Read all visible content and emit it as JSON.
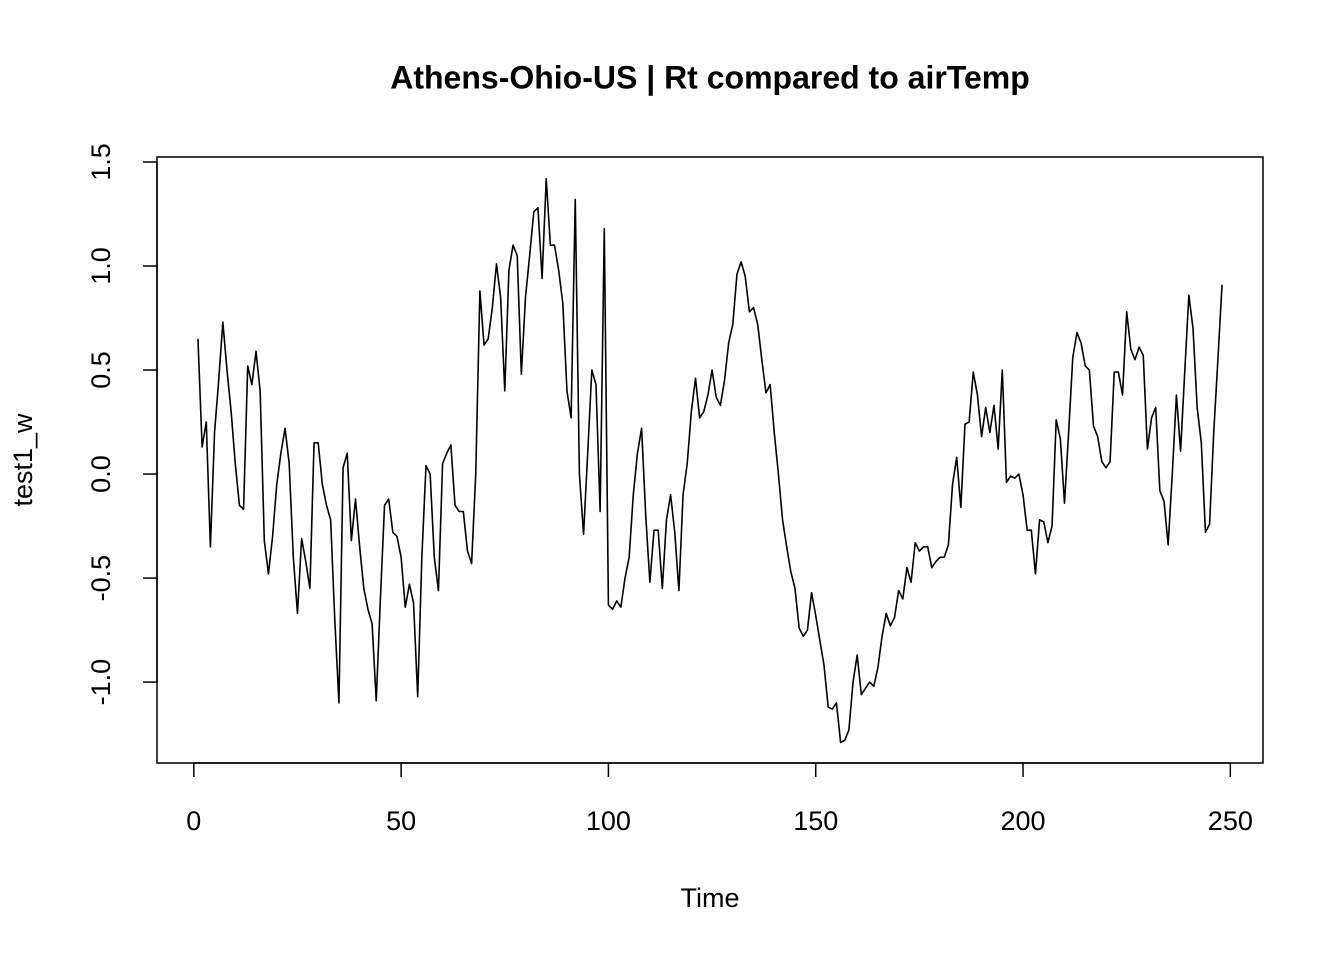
{
  "chart_data": {
    "type": "line",
    "title": "Athens-Ohio-US | Rt compared to airTemp",
    "x_label": "Time",
    "y_label": "test1_w",
    "x": [
      1,
      2,
      3,
      4,
      5,
      6,
      7,
      8,
      9,
      10,
      11,
      12,
      13,
      14,
      15,
      16,
      17,
      18,
      19,
      20,
      21,
      22,
      23,
      24,
      25,
      26,
      27,
      28,
      29,
      30,
      31,
      32,
      33,
      34,
      35,
      36,
      37,
      38,
      39,
      40,
      41,
      42,
      43,
      44,
      45,
      46,
      47,
      48,
      49,
      50,
      51,
      52,
      53,
      54,
      55,
      56,
      57,
      58,
      59,
      60,
      61,
      62,
      63,
      64,
      65,
      66,
      67,
      68,
      69,
      70,
      71,
      72,
      73,
      74,
      75,
      76,
      77,
      78,
      79,
      80,
      81,
      82,
      83,
      84,
      85,
      86,
      87,
      88,
      89,
      90,
      91,
      92,
      93,
      94,
      95,
      96,
      97,
      98,
      99,
      100,
      101,
      102,
      103,
      104,
      105,
      106,
      107,
      108,
      109,
      110,
      111,
      112,
      113,
      114,
      115,
      116,
      117,
      118,
      119,
      120,
      121,
      122,
      123,
      124,
      125,
      126,
      127,
      128,
      129,
      130,
      131,
      132,
      133,
      134,
      135,
      136,
      137,
      138,
      139,
      140,
      141,
      142,
      143,
      144,
      145,
      146,
      147,
      148,
      149,
      150,
      151,
      152,
      153,
      154,
      155,
      156,
      157,
      158,
      159,
      160,
      161,
      162,
      163,
      164,
      165,
      166,
      167,
      168,
      169,
      170,
      171,
      172,
      173,
      174,
      175,
      176,
      177,
      178,
      179,
      180,
      181,
      182,
      183,
      184,
      185,
      186,
      187,
      188,
      189,
      190,
      191,
      192,
      193,
      194,
      195,
      196,
      197,
      198,
      199,
      200,
      201,
      202,
      203,
      204,
      205,
      206,
      207,
      208,
      209,
      210,
      211,
      212,
      213,
      214,
      215,
      216,
      217,
      218,
      219,
      220,
      221,
      222,
      223,
      224,
      225,
      226,
      227,
      228,
      229,
      230,
      231,
      232,
      233,
      234,
      235,
      236,
      237,
      238,
      239,
      240,
      241,
      242,
      243,
      244,
      245,
      246,
      247,
      248
    ],
    "series": [
      {
        "name": "test1_w",
        "color": "#000000",
        "values": [
          0.65,
          0.13,
          0.25,
          -0.35,
          0.2,
          0.45,
          0.73,
          0.5,
          0.3,
          0.05,
          -0.15,
          -0.17,
          0.52,
          0.43,
          0.59,
          0.4,
          -0.32,
          -0.48,
          -0.3,
          -0.05,
          0.1,
          0.22,
          0.05,
          -0.4,
          -0.67,
          -0.31,
          -0.42,
          -0.55,
          0.15,
          0.15,
          -0.05,
          -0.15,
          -0.22,
          -0.7,
          -1.1,
          0.03,
          0.1,
          -0.32,
          -0.12,
          -0.35,
          -0.55,
          -0.65,
          -0.72,
          -1.09,
          -0.6,
          -0.15,
          -0.12,
          -0.28,
          -0.3,
          -0.4,
          -0.64,
          -0.53,
          -0.62,
          -1.07,
          -0.4,
          0.04,
          0.0,
          -0.4,
          -0.56,
          0.05,
          0.1,
          0.14,
          -0.15,
          -0.18,
          -0.18,
          -0.37,
          -0.43,
          0.0,
          0.88,
          0.62,
          0.65,
          0.8,
          1.01,
          0.85,
          0.4,
          0.98,
          1.1,
          1.05,
          0.48,
          0.85,
          1.05,
          1.26,
          1.28,
          0.94,
          1.42,
          1.1,
          1.1,
          0.98,
          0.82,
          0.4,
          0.27,
          1.32,
          0.0,
          -0.29,
          0.1,
          0.5,
          0.43,
          -0.18,
          1.18,
          -0.63,
          -0.65,
          -0.61,
          -0.64,
          -0.5,
          -0.4,
          -0.1,
          0.1,
          0.22,
          -0.2,
          -0.52,
          -0.27,
          -0.27,
          -0.55,
          -0.22,
          -0.1,
          -0.28,
          -0.56,
          -0.1,
          0.05,
          0.3,
          0.46,
          0.27,
          0.3,
          0.38,
          0.5,
          0.37,
          0.33,
          0.45,
          0.63,
          0.72,
          0.96,
          1.02,
          0.95,
          0.78,
          0.8,
          0.72,
          0.55,
          0.39,
          0.43,
          0.2,
          0.0,
          -0.22,
          -0.35,
          -0.47,
          -0.55,
          -0.74,
          -0.78,
          -0.75,
          -0.57,
          -0.68,
          -0.8,
          -0.92,
          -1.12,
          -1.13,
          -1.1,
          -1.29,
          -1.28,
          -1.23,
          -1.0,
          -0.87,
          -1.06,
          -1.03,
          -1.0,
          -1.02,
          -0.93,
          -0.78,
          -0.67,
          -0.73,
          -0.69,
          -0.56,
          -0.6,
          -0.45,
          -0.52,
          -0.33,
          -0.37,
          -0.35,
          -0.35,
          -0.45,
          -0.42,
          -0.4,
          -0.4,
          -0.34,
          -0.05,
          0.08,
          -0.16,
          0.24,
          0.25,
          0.49,
          0.38,
          0.18,
          0.32,
          0.2,
          0.33,
          0.12,
          0.5,
          -0.04,
          -0.01,
          -0.02,
          0.0,
          -0.1,
          -0.27,
          -0.27,
          -0.48,
          -0.22,
          -0.23,
          -0.33,
          -0.25,
          0.26,
          0.17,
          -0.14,
          0.2,
          0.56,
          0.68,
          0.63,
          0.52,
          0.5,
          0.23,
          0.18,
          0.06,
          0.03,
          0.06,
          0.49,
          0.49,
          0.38,
          0.78,
          0.6,
          0.55,
          0.61,
          0.57,
          0.12,
          0.27,
          0.32,
          -0.08,
          -0.13,
          -0.34,
          0.0,
          0.38,
          0.11,
          0.49,
          0.86,
          0.7,
          0.32,
          0.15,
          -0.28,
          -0.24,
          0.2,
          0.55,
          0.91
        ]
      }
    ],
    "xlim": [
      -8.88,
      257.88
    ],
    "ylim": [
      -1.389,
      1.524
    ],
    "xticks": [
      0,
      50,
      100,
      150,
      200,
      250
    ],
    "yticks": [
      {
        "value": -1.0,
        "label": "-1.0"
      },
      -0.5,
      {
        "value": 0.0,
        "label": "0.0"
      },
      0.5,
      {
        "value": 1.0,
        "label": "1.0"
      },
      1.5
    ],
    "grid": false
  }
}
